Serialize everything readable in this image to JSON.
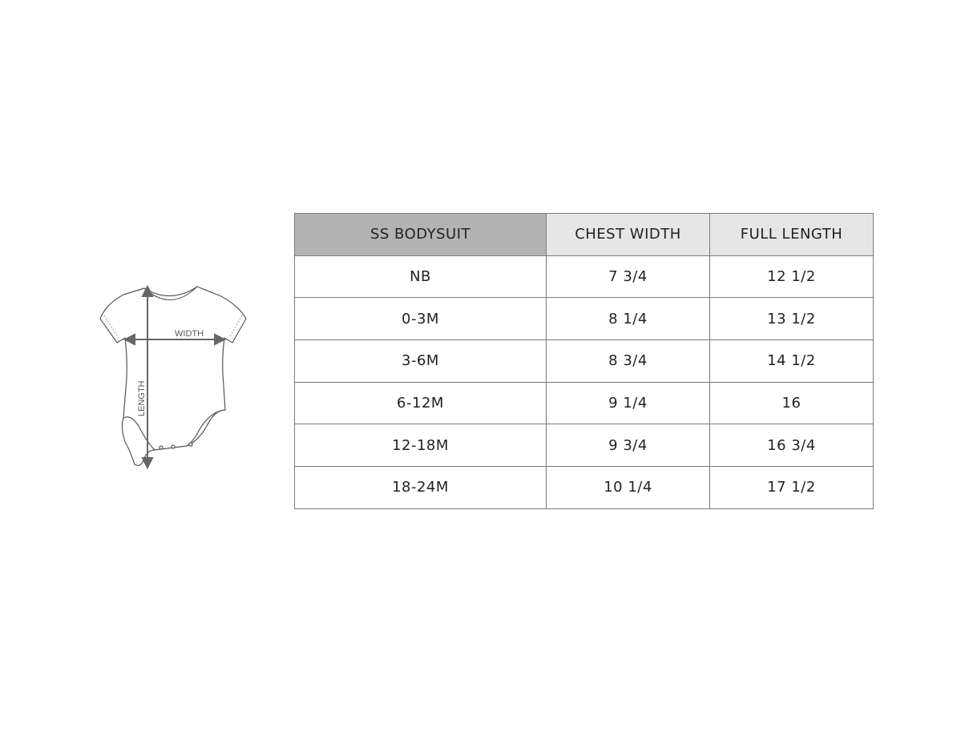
{
  "garment": {
    "width_label": "WIDTH",
    "length_label": "LENGTH"
  },
  "colors": {
    "header_primary": "#b3b3b3",
    "header_secondary": "#e6e6e6",
    "border": "#7a7a7a"
  },
  "table": {
    "headers": [
      "SS BODYSUIT",
      "CHEST WIDTH",
      "FULL LENGTH"
    ],
    "rows": [
      [
        "NB",
        "7 3/4",
        "12 1/2"
      ],
      [
        "0-3M",
        "8 1/4",
        "13 1/2"
      ],
      [
        "3-6M",
        "8 3/4",
        "14 1/2"
      ],
      [
        "6-12M",
        "9 1/4",
        "16"
      ],
      [
        "12-18M",
        "9 3/4",
        "16 3/4"
      ],
      [
        "18-24M",
        "10 1/4",
        "17 1/2"
      ]
    ]
  }
}
